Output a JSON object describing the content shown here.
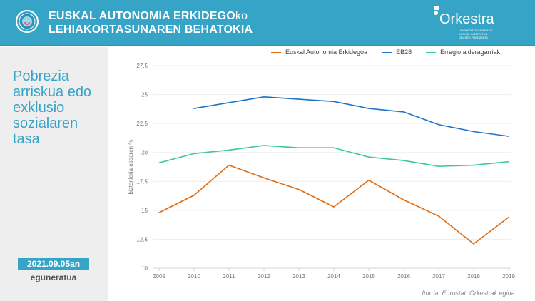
{
  "header": {
    "title_line1": "EUSKAL AUTONOMIA ERKIDEGO",
    "title_line1_suffix": "ko",
    "title_line2": "LEHIAKORTASUNAREN BEHATOKIA",
    "brand": "Orkestra",
    "brand_sub1": "LEHIAKORTASUNERAKO",
    "brand_sub2": "EUSKAL INSTITUTUA",
    "brand_sub3": "DEUSTO FUNDAZIOA"
  },
  "sidebar": {
    "heading": "Pobrezia arriskua edo exklusio sozialaren tasa",
    "date": "2021.09.05an",
    "updated": "eguneratua"
  },
  "source": "Iturria: Eurostat. Orkestrak egina.",
  "colors": {
    "header": "#36a4c7",
    "orange": "#e06c10",
    "blue": "#1f74c9",
    "green": "#3cc6a2"
  },
  "chart_data": {
    "type": "line",
    "title": "Pobrezia arriskua edo exklusio sozialaren tasa",
    "xlabel": "",
    "ylabel": "biztanleria osoaren %",
    "ylim": [
      10,
      27.5
    ],
    "yticks": [
      "10",
      "12.5",
      "15",
      "17.5",
      "20",
      "22.5",
      "25",
      "27.5"
    ],
    "x": [
      "2009",
      "2010",
      "2011",
      "2012",
      "2013",
      "2014",
      "2015",
      "2016",
      "2017",
      "2018",
      "2019"
    ],
    "legend_position": "top-right",
    "series": [
      {
        "name": "Euskal Autonomia Erkidegoa",
        "color": "#e06c10",
        "values": [
          14.8,
          16.3,
          18.9,
          17.8,
          16.8,
          15.3,
          17.6,
          15.9,
          14.5,
          12.1,
          14.4
        ]
      },
      {
        "name": "EB28",
        "color": "#1f74c9",
        "values": [
          null,
          23.8,
          24.3,
          24.8,
          24.6,
          24.4,
          23.8,
          23.5,
          22.4,
          21.8,
          21.4
        ]
      },
      {
        "name": "Erregio alderagarriak",
        "color": "#3cc6a2",
        "values": [
          19.1,
          19.9,
          20.2,
          20.6,
          20.4,
          20.4,
          19.6,
          19.3,
          18.8,
          18.9,
          19.2
        ]
      }
    ]
  }
}
